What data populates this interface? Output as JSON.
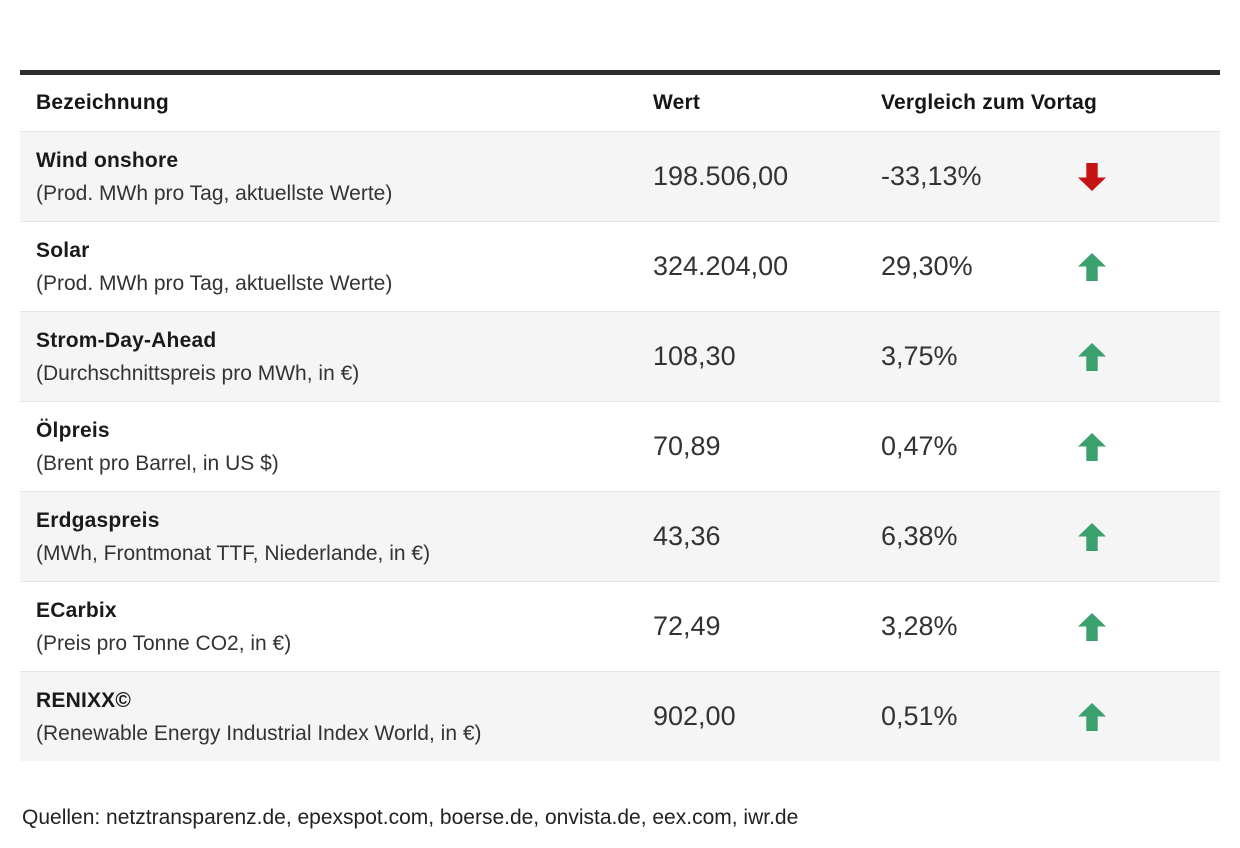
{
  "chart_data": {
    "type": "table",
    "columns": [
      "Bezeichnung",
      "Wert",
      "Vergleich zum Vortag"
    ],
    "rows": [
      {
        "name": "Wind onshore",
        "description": "(Prod. MWh pro Tag, aktuellste Werte)",
        "value": "198.506,00",
        "change": "-33,13%",
        "trend": "down"
      },
      {
        "name": "Solar",
        "description": "(Prod. MWh pro Tag, aktuellste Werte)",
        "value": "324.204,00",
        "change": "29,30%",
        "trend": "up"
      },
      {
        "name": "Strom-Day-Ahead",
        "description": "(Durchschnittspreis pro MWh, in €)",
        "value": "108,30",
        "change": "3,75%",
        "trend": "up"
      },
      {
        "name": "Ölpreis",
        "description": "(Brent pro Barrel, in US $)",
        "value": "70,89",
        "change": "0,47%",
        "trend": "up"
      },
      {
        "name": "Erdgaspreis",
        "description": "(MWh, Frontmonat TTF, Niederlande, in €)",
        "value": "43,36",
        "change": "6,38%",
        "trend": "up"
      },
      {
        "name": "ECarbix",
        "description": "(Preis pro Tonne CO2, in €)",
        "value": "72,49",
        "change": "3,28%",
        "trend": "up"
      },
      {
        "name": "RENIXX©",
        "description": "(Renewable Energy Industrial Index World, in €)",
        "value": "902,00",
        "change": "0,51%",
        "trend": "up"
      }
    ],
    "source_note": "Quellen: netztransparenz.de, epexspot.com, boerse.de, onvista.de, eex.com, iwr.de",
    "legend_position": "none",
    "grid": "row-stripes"
  },
  "colors": {
    "trend_up": "#3aa06d",
    "trend_down": "#c51212",
    "top_bar": "#2d2d2d",
    "row_alt_bg": "#f5f5f5"
  }
}
